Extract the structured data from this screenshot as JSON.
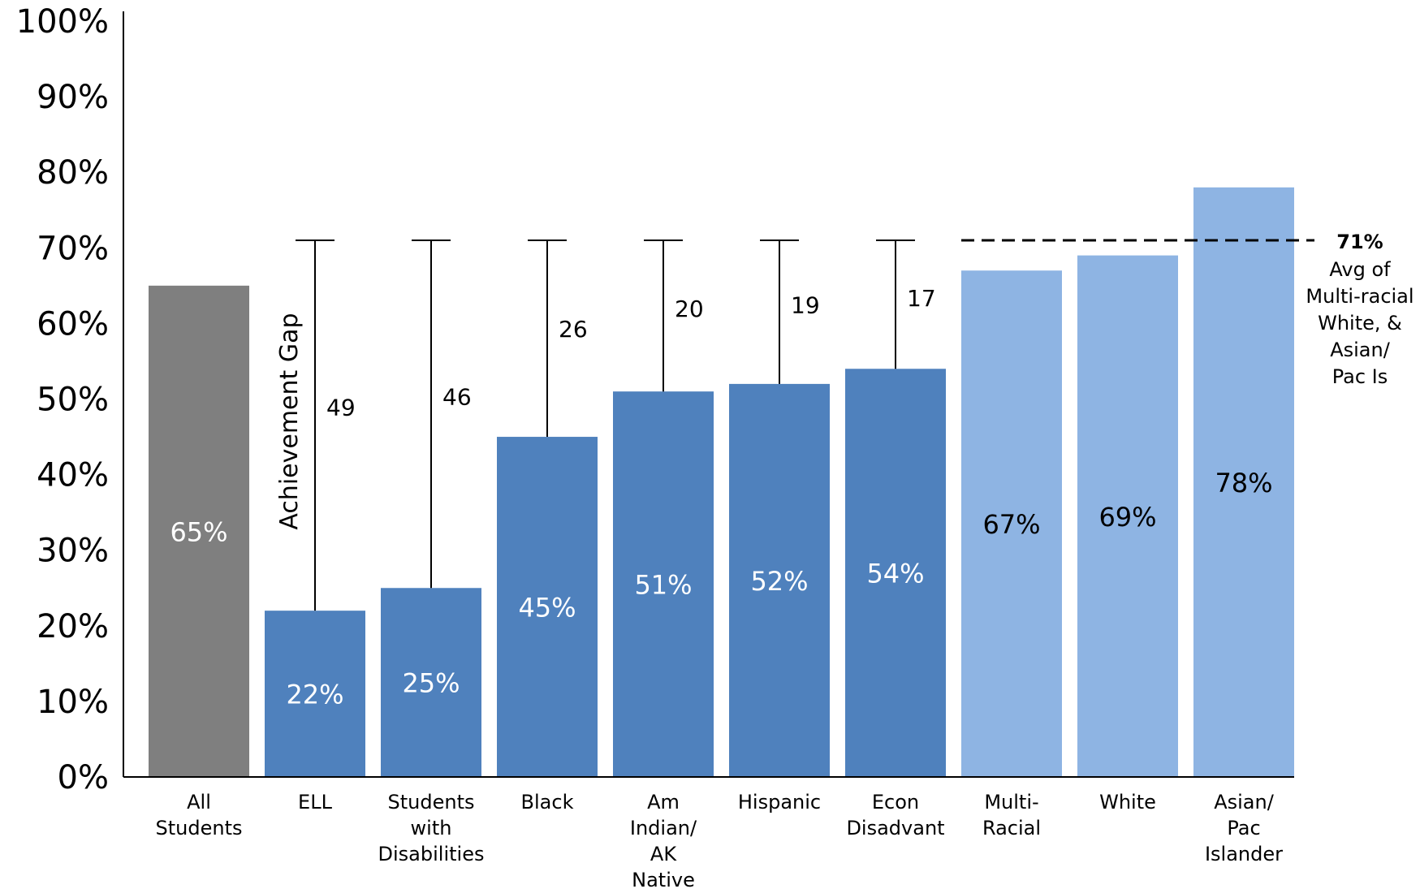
{
  "chart_data": {
    "type": "bar",
    "categories": [
      [
        "All",
        "Students"
      ],
      [
        "ELL"
      ],
      [
        "Students",
        "with",
        "Disabilities"
      ],
      [
        "Black"
      ],
      [
        "Am",
        "Indian/",
        "AK",
        "Native"
      ],
      [
        "Hispanic"
      ],
      [
        "Econ",
        "Disadvant"
      ],
      [
        "Multi-",
        "Racial"
      ],
      [
        "White"
      ],
      [
        "Asian/",
        "Pac",
        "Islander"
      ]
    ],
    "values": [
      65,
      22,
      25,
      45,
      51,
      52,
      54,
      67,
      69,
      78
    ],
    "data_labels": [
      "65%",
      "22%",
      "25%",
      "45%",
      "51%",
      "52%",
      "54%",
      "67%",
      "69%",
      "78%"
    ],
    "bar_colors": [
      "#7f7f7f",
      "#4f81bd",
      "#4f81bd",
      "#4f81bd",
      "#4f81bd",
      "#4f81bd",
      "#4f81bd",
      "#8eb4e3",
      "#8eb4e3",
      "#8eb4e3"
    ],
    "label_colors": [
      "#ffffff",
      "#ffffff",
      "#ffffff",
      "#ffffff",
      "#ffffff",
      "#ffffff",
      "#ffffff",
      "#000000",
      "#000000",
      "#000000"
    ],
    "gaps": [
      null,
      49,
      46,
      26,
      20,
      19,
      17,
      null,
      null,
      null
    ],
    "gap_axis_label": "Achievement Gap",
    "reference_line": {
      "value": 71,
      "label_bold": "71%",
      "label_lines": [
        "Avg of",
        "Multi-racial",
        "White, &",
        "Asian/",
        "Pac Is"
      ]
    },
    "ylim": [
      0,
      100
    ],
    "yticks": [
      "0%",
      "10%",
      "20%",
      "30%",
      "40%",
      "50%",
      "60%",
      "70%",
      "80%",
      "90%",
      "100%"
    ],
    "ytick_values": [
      0,
      10,
      20,
      30,
      40,
      50,
      60,
      70,
      80,
      90,
      100
    ],
    "grid": false,
    "legend": "none"
  }
}
